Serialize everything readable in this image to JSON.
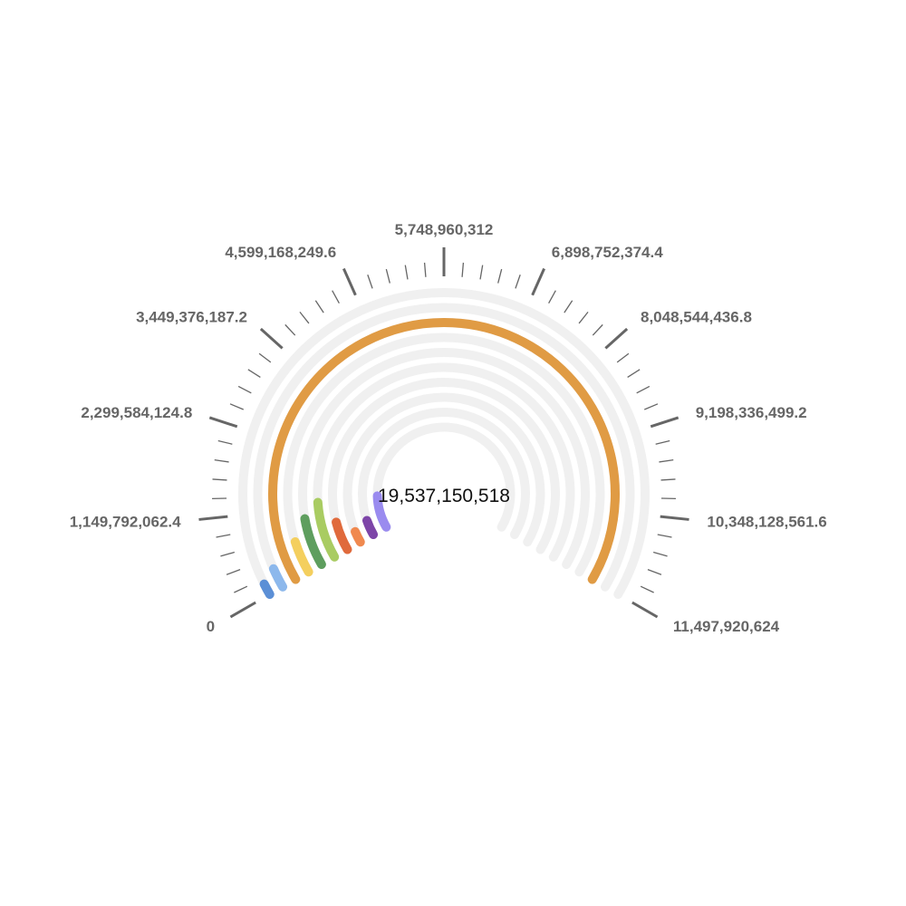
{
  "chart_data": {
    "type": "radial-bar",
    "center_label": "19,537,150,518",
    "axis": {
      "min": 0,
      "max": 11497920624,
      "tick_labels": [
        "0",
        "1,149,792,062.4",
        "2,299,584,124.8",
        "3,449,376,187.2",
        "4,599,168,249.6",
        "5,748,960,312",
        "6,898,752,374.4",
        "8,048,544,436.8",
        "9,198,336,499.2",
        "10,348,128,561.6",
        "11,497,920,624"
      ]
    },
    "series": [
      {
        "value": 160000000,
        "color": "#5b8fd6"
      },
      {
        "value": 300000000,
        "color": "#8cb8ec"
      },
      {
        "value": 11497920624,
        "color": "#e09b44"
      },
      {
        "value": 580000000,
        "color": "#f4cf5e"
      },
      {
        "value": 950000000,
        "color": "#5e9e5e"
      },
      {
        "value": 1250000000,
        "color": "#a9cc62"
      },
      {
        "value": 730000000,
        "color": "#e06a3c"
      },
      {
        "value": 330000000,
        "color": "#f0894f"
      },
      {
        "value": 520000000,
        "color": "#7d45a8"
      },
      {
        "value": 1350000000,
        "color": "#9a8bef"
      }
    ],
    "track_color": "#f0f0f0",
    "grid": false,
    "legend": "none"
  }
}
